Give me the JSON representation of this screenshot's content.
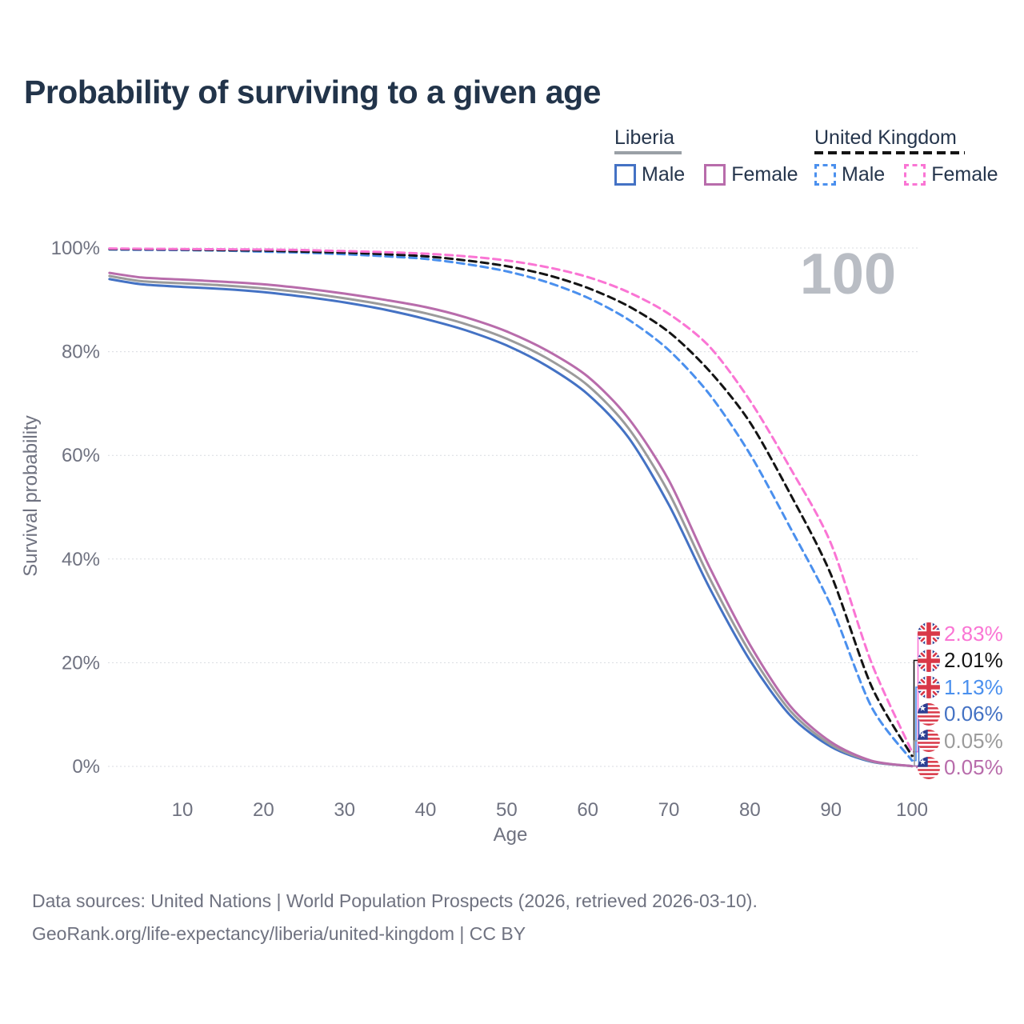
{
  "title": "Probability of surviving to a given age",
  "watermark": "100",
  "legend": {
    "groups": [
      {
        "name": "Liberia",
        "line_style": "solid",
        "items": [
          {
            "label": "Male",
            "color": "#4472c4",
            "dashed": false,
            "id": "liberia-male"
          },
          {
            "label": "Female",
            "color": "#b86cab",
            "dashed": false,
            "id": "liberia-female"
          }
        ]
      },
      {
        "name": "United Kingdom",
        "line_style": "dashed",
        "items": [
          {
            "label": "Male",
            "color": "#4b90ee",
            "dashed": true,
            "id": "uk-male"
          },
          {
            "label": "Female",
            "color": "#fa75d4",
            "dashed": true,
            "id": "uk-female"
          }
        ]
      }
    ]
  },
  "chart_data": {
    "type": "line",
    "title": "Probability of surviving to a given age",
    "xlabel": "Age",
    "ylabel": "Survival probability",
    "xlim": [
      1,
      100
    ],
    "ylim": [
      0,
      100
    ],
    "grid": "horizontal-only",
    "x_ticks": [
      10,
      20,
      30,
      40,
      50,
      60,
      70,
      80,
      90,
      100
    ],
    "y_ticks": [
      {
        "value": 0,
        "label": "0%"
      },
      {
        "value": 20,
        "label": "20%"
      },
      {
        "value": 40,
        "label": "40%"
      },
      {
        "value": 60,
        "label": "60%"
      },
      {
        "value": 80,
        "label": "80%"
      },
      {
        "value": 100,
        "label": "100%"
      }
    ],
    "x": [
      1,
      5,
      10,
      15,
      20,
      25,
      30,
      35,
      40,
      45,
      50,
      55,
      60,
      65,
      70,
      75,
      80,
      85,
      90,
      95,
      100
    ],
    "series": [
      {
        "id": "liberia-male",
        "name": "Liberia Male",
        "color": "#4472c4",
        "dashed": false,
        "values": [
          94.0,
          93.0,
          92.5,
          92.1,
          91.5,
          90.6,
          89.5,
          88.1,
          86.3,
          84.1,
          81.2,
          77.2,
          71.8,
          63.5,
          50.5,
          34.5,
          20.5,
          9.8,
          3.8,
          0.9,
          0.06
        ]
      },
      {
        "id": "liberia-total",
        "name": "Liberia",
        "color": "#9b9b9b",
        "dashed": false,
        "values": [
          94.6,
          93.6,
          93.2,
          92.8,
          92.2,
          91.4,
          90.3,
          89.0,
          87.4,
          85.3,
          82.5,
          78.7,
          73.5,
          65.3,
          52.8,
          36.4,
          22.0,
          10.7,
          4.2,
          1.0,
          0.05
        ]
      },
      {
        "id": "liberia-female",
        "name": "Liberia Female",
        "color": "#b86cab",
        "dashed": false,
        "values": [
          95.2,
          94.3,
          93.9,
          93.5,
          93.0,
          92.2,
          91.2,
          90.0,
          88.6,
          86.6,
          83.9,
          80.2,
          75.2,
          67.2,
          55.2,
          38.5,
          23.5,
          11.6,
          4.7,
          1.1,
          0.05
        ]
      },
      {
        "id": "uk-male",
        "name": "United Kingdom Male",
        "color": "#4b90ee",
        "dashed": true,
        "values": [
          99.7,
          99.65,
          99.6,
          99.5,
          99.3,
          99.1,
          98.8,
          98.4,
          97.9,
          96.9,
          95.5,
          93.4,
          90.4,
          86.2,
          80.3,
          71.8,
          60.3,
          46.0,
          31.0,
          11.5,
          1.13
        ]
      },
      {
        "id": "uk-total",
        "name": "United Kingdom",
        "color": "#141414",
        "dashed": true,
        "values": [
          99.8,
          99.75,
          99.7,
          99.6,
          99.5,
          99.3,
          99.1,
          98.8,
          98.4,
          97.6,
          96.5,
          94.8,
          92.3,
          88.8,
          83.8,
          76.3,
          66.4,
          52.5,
          37.0,
          15.5,
          2.01
        ]
      },
      {
        "id": "uk-female",
        "name": "United Kingdom Female",
        "color": "#fa75d4",
        "dashed": true,
        "values": [
          99.9,
          99.85,
          99.8,
          99.75,
          99.7,
          99.6,
          99.4,
          99.2,
          98.9,
          98.4,
          97.6,
          96.3,
          94.4,
          91.5,
          87.3,
          81.0,
          70.6,
          57.5,
          43.0,
          20.0,
          2.83
        ]
      }
    ],
    "end_labels": [
      {
        "text": "2.83%",
        "value": 2.83,
        "series": "uk-female",
        "color": "#fa75d4",
        "flag": "uk"
      },
      {
        "text": "2.01%",
        "value": 2.01,
        "series": "uk-total",
        "color": "#141414",
        "flag": "uk"
      },
      {
        "text": "1.13%",
        "value": 1.13,
        "series": "uk-male",
        "color": "#4b90ee",
        "flag": "uk"
      },
      {
        "text": "0.06%",
        "value": 0.06,
        "series": "liberia-male",
        "color": "#4472c4",
        "flag": "liberia"
      },
      {
        "text": "0.05%",
        "value": 0.05,
        "series": "liberia-total",
        "color": "#9b9b9b",
        "flag": "liberia"
      },
      {
        "text": "0.05%",
        "value": 0.05,
        "series": "liberia-female",
        "color": "#b86cab",
        "flag": "liberia"
      }
    ]
  },
  "source": {
    "line1": "Data sources: United Nations | World Population Prospects (2026, retrieved 2026-03-10).",
    "line2": "GeoRank.org/life-expectancy/liberia/united-kingdom | CC BY"
  }
}
